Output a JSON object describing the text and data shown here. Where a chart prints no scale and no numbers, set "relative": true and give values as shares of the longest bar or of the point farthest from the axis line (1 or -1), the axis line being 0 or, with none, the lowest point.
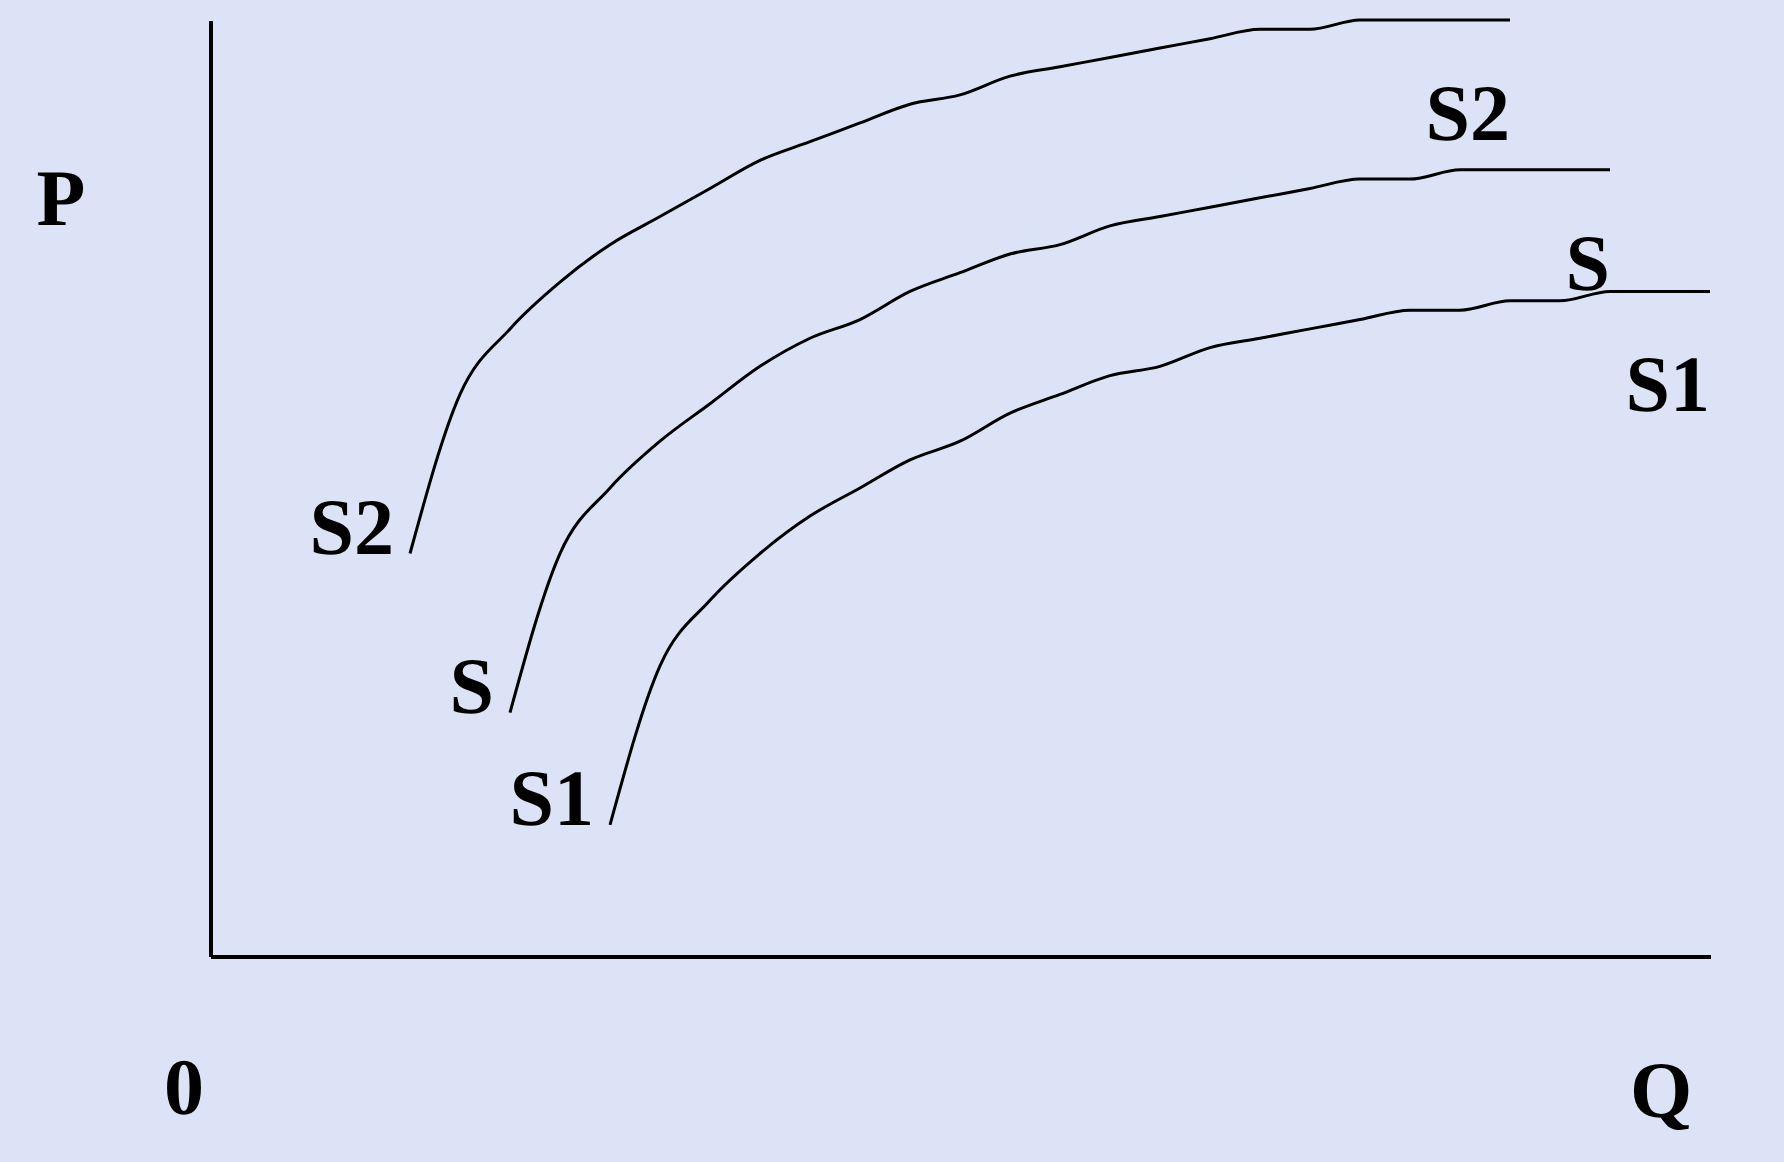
{
  "chart_data": {
    "type": "line",
    "relative": true,
    "xlabel": "Q",
    "ylabel": "P",
    "grid": false,
    "marker": "none",
    "line_style": "solid",
    "categories": [
      null,
      null,
      null,
      null,
      null,
      null,
      null,
      null,
      null,
      null,
      null,
      null,
      null,
      null,
      null,
      null,
      null,
      null,
      null,
      null,
      null,
      null,
      null,
      null,
      null,
      null,
      null,
      null,
      null,
      null,
      null
    ],
    "series": [
      {
        "name": "S2",
        "color": "#000000",
        "values": [
          null,
          null,
          null,
          null,
          0.43,
          0.6,
          0.67,
          0.72,
          0.76,
          0.79,
          0.82,
          0.85,
          0.87,
          0.89,
          0.91,
          0.92,
          0.94,
          0.95,
          0.96,
          0.97,
          0.98,
          0.99,
          0.99,
          1.0,
          1.0,
          1.0,
          1.0,
          null,
          null,
          null,
          null
        ]
      },
      {
        "name": "S",
        "color": "#000000",
        "values": [
          null,
          null,
          null,
          null,
          null,
          null,
          0.26,
          0.43,
          0.5,
          0.55,
          0.59,
          0.63,
          0.66,
          0.68,
          0.71,
          0.73,
          0.75,
          0.76,
          0.78,
          0.79,
          0.8,
          0.81,
          0.82,
          0.83,
          0.83,
          0.84,
          0.84,
          0.84,
          0.84,
          null,
          null
        ]
      },
      {
        "name": "S1",
        "color": "#000000",
        "values": [
          null,
          null,
          null,
          null,
          null,
          null,
          null,
          null,
          0.14,
          0.31,
          0.38,
          0.43,
          0.47,
          0.5,
          0.53,
          0.55,
          0.58,
          0.6,
          0.62,
          0.63,
          0.65,
          0.66,
          0.67,
          0.68,
          0.69,
          0.69,
          0.7,
          0.7,
          0.71,
          0.71,
          0.71
        ]
      }
    ],
    "annotations": [
      "S2",
      "S",
      "S1",
      "0"
    ]
  }
}
